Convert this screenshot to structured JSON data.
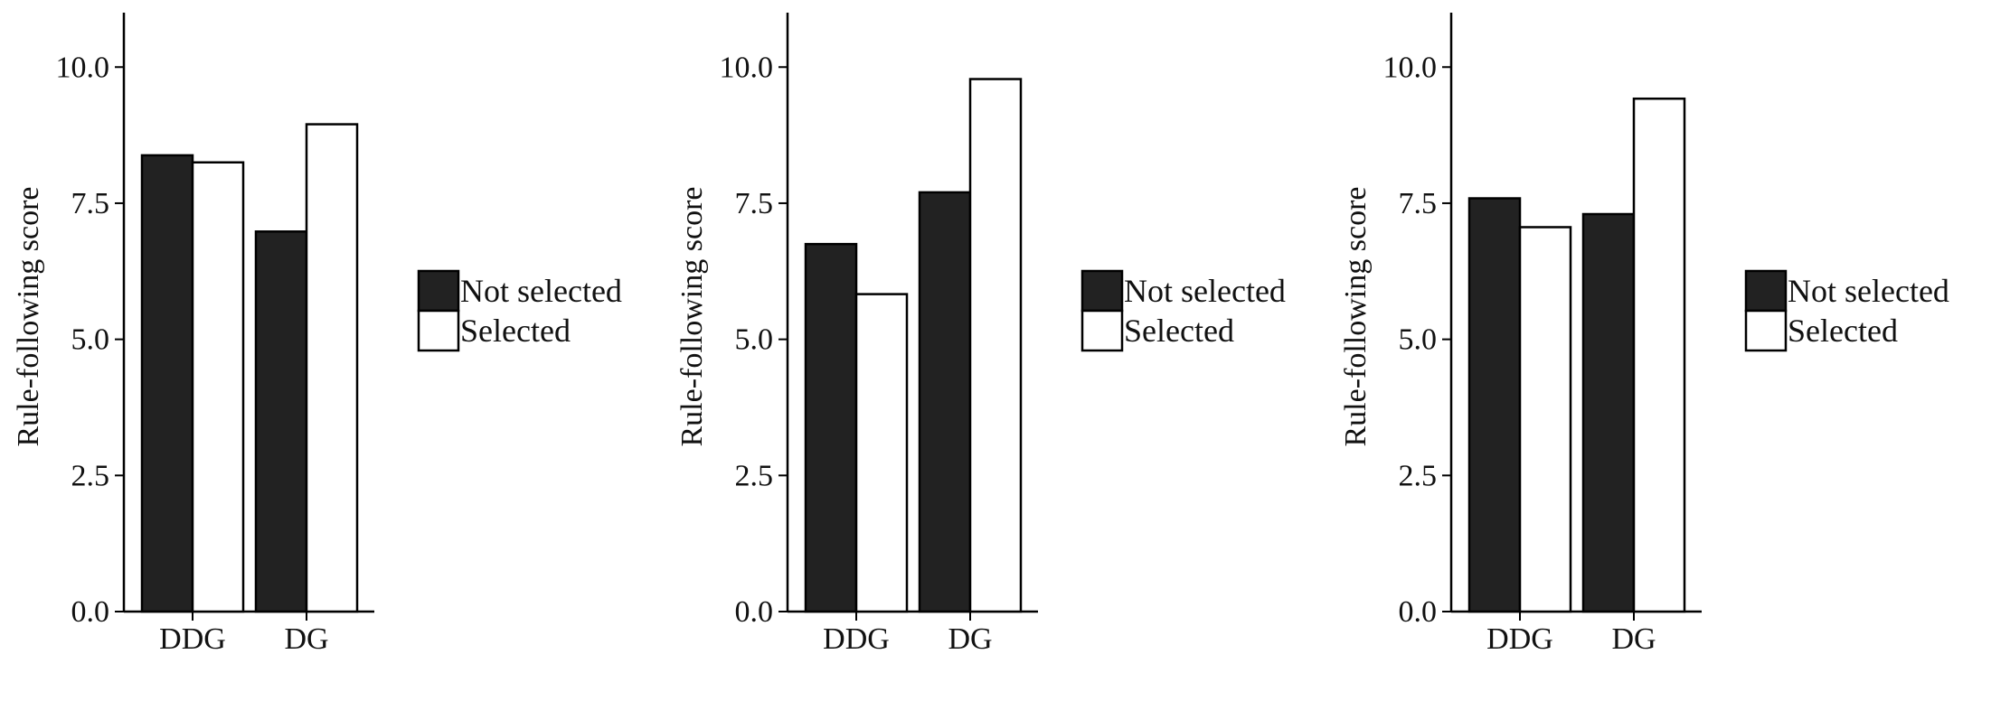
{
  "chart_data": [
    {
      "type": "bar",
      "categories": [
        "DDG",
        "DG"
      ],
      "series": [
        {
          "name": "Not selected",
          "values": [
            8.38,
            6.98
          ]
        },
        {
          "name": "Selected",
          "values": [
            8.25,
            8.95
          ]
        }
      ],
      "ylabel": "Rule-following score",
      "ylim": [
        0,
        11
      ],
      "yticks": [
        "0.0",
        "2.5",
        "5.0",
        "7.5",
        "10.0"
      ],
      "grid": false,
      "legend_position": "right"
    },
    {
      "type": "bar",
      "categories": [
        "DDG",
        "DG"
      ],
      "series": [
        {
          "name": "Not selected",
          "values": [
            6.75,
            7.7
          ]
        },
        {
          "name": "Selected",
          "values": [
            5.83,
            9.78
          ]
        }
      ],
      "ylabel": "Rule-following score",
      "ylim": [
        0,
        11
      ],
      "yticks": [
        "0.0",
        "2.5",
        "5.0",
        "7.5",
        "10.0"
      ],
      "grid": false,
      "legend_position": "right"
    },
    {
      "type": "bar",
      "categories": [
        "DDG",
        "DG"
      ],
      "series": [
        {
          "name": "Not selected",
          "values": [
            7.59,
            7.3
          ]
        },
        {
          "name": "Selected",
          "values": [
            7.06,
            9.42
          ]
        }
      ],
      "ylabel": "Rule-following score",
      "ylim": [
        0,
        11
      ],
      "yticks": [
        "0.0",
        "2.5",
        "5.0",
        "7.5",
        "10.0"
      ],
      "grid": false,
      "legend_position": "right"
    }
  ],
  "colors": {
    "not_selected": "#222222",
    "selected": "#ffffff",
    "stroke": "#000000"
  }
}
